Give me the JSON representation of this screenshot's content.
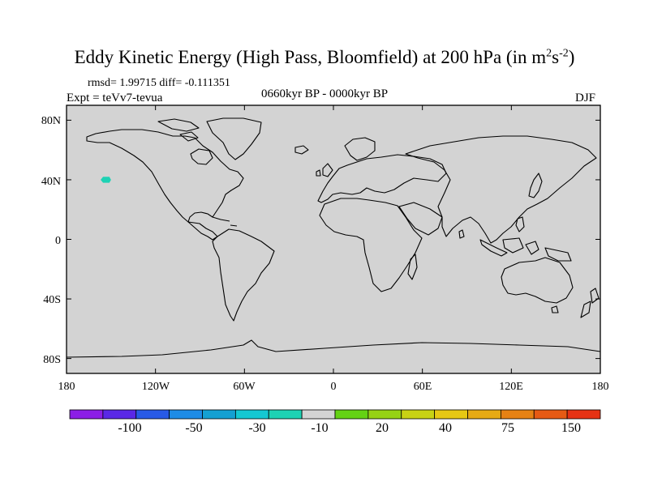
{
  "title": {
    "main": "Eddy Kinetic Energy (High Pass, Bloomfield) at 200 hPa (in m",
    "sup1": "2",
    "mid": "s",
    "sup2": "-2",
    "end": ")"
  },
  "stats": "rmsd= 1.99715 diff= -0.111351",
  "expt": "Expt = teVv7-tevua",
  "period": "0660kyr BP - 0000kyr BP",
  "season": "DJF",
  "map": {
    "background_color": "#d3d3d3",
    "coastline_color": "#000000",
    "anomaly_region": {
      "label": "North Pacific anomaly patch",
      "color": "#1ed2b4",
      "lon": [
        -157,
        -150
      ],
      "lat": [
        38,
        42
      ]
    },
    "lat_labels": [
      "80N",
      "40N",
      "0",
      "40S",
      "80S"
    ],
    "lon_labels": [
      "180",
      "120W",
      "60W",
      "0",
      "60E",
      "120E",
      "180"
    ]
  },
  "colorbar": {
    "colors": [
      "#8c1ee6",
      "#5a28e6",
      "#285ae6",
      "#1e8ce6",
      "#14a0d2",
      "#14c8d2",
      "#1ed2b4",
      "#d3d3d3",
      "#64d214",
      "#96d214",
      "#c8d214",
      "#e6c814",
      "#e6aa14",
      "#e68214",
      "#e65a14",
      "#e63214"
    ],
    "labels": [
      "-100",
      "-50",
      "-30",
      "-10",
      "20",
      "40",
      "75",
      "150"
    ]
  }
}
